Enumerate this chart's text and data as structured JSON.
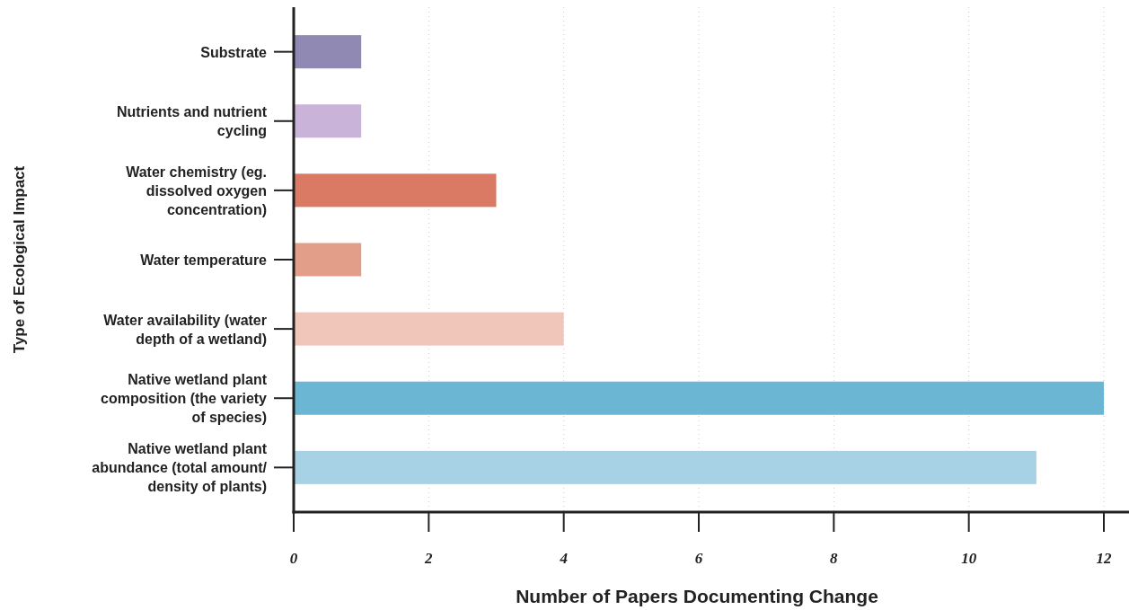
{
  "chart_data": {
    "type": "bar",
    "orientation": "horizontal",
    "xlabel": "Number of Papers Documenting Change",
    "ylabel": "Type of Ecological Impact",
    "categories": [
      "Substrate",
      "Nutrients and nutrient cycling",
      "Water chemistry (eg. dissolved oxygen concentration)",
      "Water temperature",
      "Water availability (water depth of a wetland)",
      "Native wetland plant composition (the variety of species)",
      "Native wetland plant abundance (total amount/ density of plants)"
    ],
    "values": [
      1,
      1,
      3,
      1,
      4,
      12,
      11
    ],
    "colors": [
      "#8f89b3",
      "#c9b3d8",
      "#db7a64",
      "#e39e89",
      "#f0c6ba",
      "#6ab6d3",
      "#a7d1e4"
    ],
    "xlim": [
      0,
      12
    ],
    "xticks": [
      0,
      2,
      4,
      6,
      8,
      10,
      12
    ],
    "grid": "x"
  }
}
